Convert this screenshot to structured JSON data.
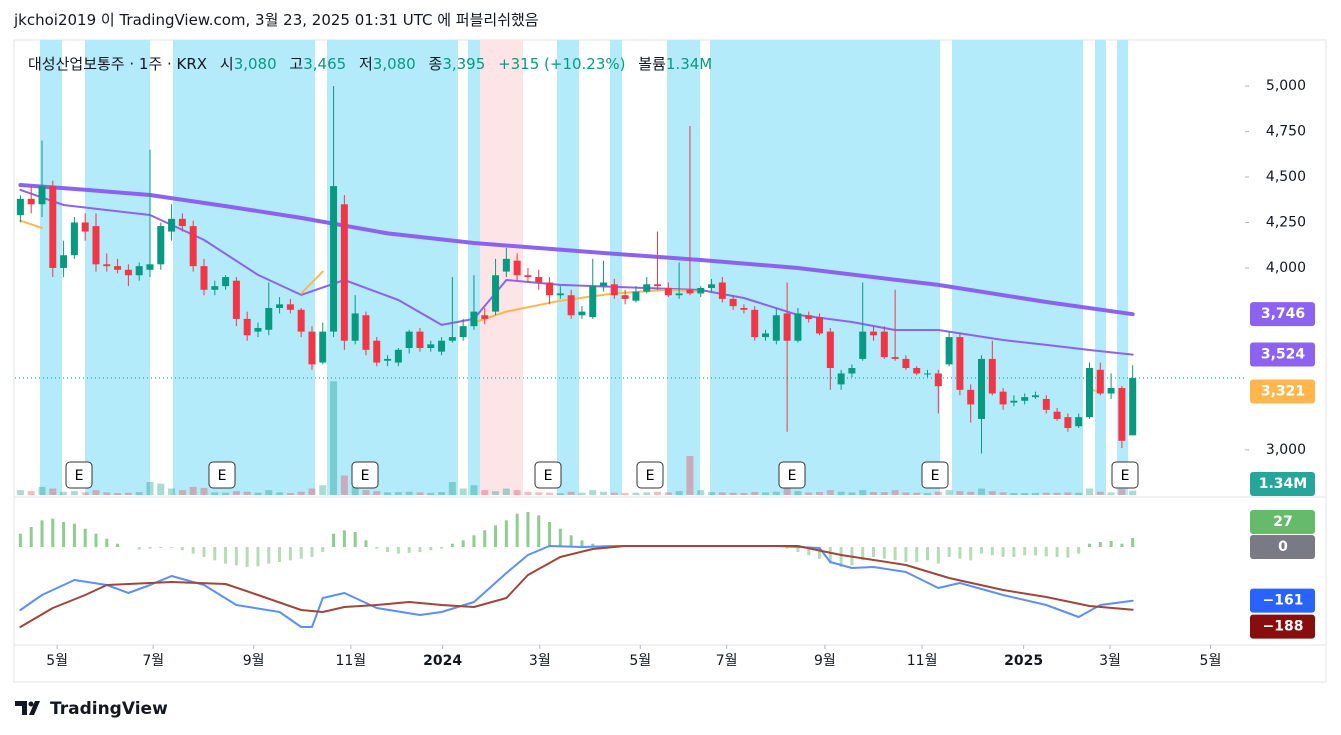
{
  "header": {
    "publisher": "jkchoi2019 이 TradingView.com, 3월 23, 2025 01:31 UTC 에 퍼블리쉬했음"
  },
  "footer": {
    "brand": "TradingView"
  },
  "chart_data": {
    "type": "candlestick",
    "legend": {
      "symbol": "대성산업보통주 · 1주 · KRX",
      "open_label": "시",
      "open": "3,080",
      "high_label": "고",
      "high": "3,465",
      "low_label": "저",
      "low": "3,080",
      "close_label": "종",
      "close": "3,395",
      "change": "+315 (+10.23%)",
      "volume_label": "볼륨",
      "volume": "1.34M"
    },
    "xlim": [
      -0.5,
      113.4
    ],
    "xticks": [
      {
        "value": 3.4,
        "label": "5월"
      },
      {
        "value": 12.3,
        "label": "7월"
      },
      {
        "value": 21.6,
        "label": "9월"
      },
      {
        "value": 30.6,
        "label": "11월"
      },
      {
        "value": 39.1,
        "label": "2024"
      },
      {
        "value": 48.1,
        "label": "3월"
      },
      {
        "value": 57.4,
        "label": "5월"
      },
      {
        "value": 65.4,
        "label": "7월"
      },
      {
        "value": 74.5,
        "label": "9월"
      },
      {
        "value": 83.5,
        "label": "11월"
      },
      {
        "value": 92.9,
        "label": "2025"
      },
      {
        "value": 100.9,
        "label": "3월"
      },
      {
        "value": 110.2,
        "label": "5월"
      }
    ],
    "ylim": [
      2752,
      5253
    ],
    "yticks": [
      {
        "value": 5000,
        "label": "5,000"
      },
      {
        "value": 4750,
        "label": "4,750"
      },
      {
        "value": 4500,
        "label": "4,500"
      },
      {
        "value": 4250,
        "label": "4,250"
      },
      {
        "value": 4000,
        "label": "4,000"
      },
      {
        "value": 3000,
        "label": "3,000"
      }
    ],
    "colors": {
      "up": "#089981",
      "down": "#f23645"
    },
    "candles": [
      [
        4290,
        4400,
        4250,
        4380
      ],
      [
        4380,
        4450,
        4300,
        4350
      ],
      [
        4350,
        4700,
        4280,
        4450
      ],
      [
        4450,
        4480,
        3950,
        4000
      ],
      [
        4000,
        4150,
        3950,
        4070
      ],
      [
        4070,
        4280,
        4050,
        4250
      ],
      [
        4250,
        4300,
        4150,
        4200
      ],
      [
        4230,
        4300,
        3980,
        4020
      ],
      [
        4020,
        4080,
        3980,
        4010
      ],
      [
        4010,
        4050,
        3970,
        3990
      ],
      [
        3990,
        4020,
        3900,
        3960
      ],
      [
        3960,
        4030,
        3930,
        4010
      ],
      [
        3990,
        4650,
        3950,
        4020
      ],
      [
        4020,
        4250,
        3990,
        4230
      ],
      [
        4200,
        4350,
        4150,
        4270
      ],
      [
        4270,
        4300,
        4200,
        4230
      ],
      [
        4230,
        4260,
        3980,
        4010
      ],
      [
        4010,
        4050,
        3850,
        3880
      ],
      [
        3880,
        3930,
        3850,
        3900
      ],
      [
        3900,
        3960,
        3880,
        3950
      ],
      [
        3930,
        3950,
        3680,
        3720
      ],
      [
        3720,
        3760,
        3600,
        3630
      ],
      [
        3650,
        3700,
        3620,
        3670
      ],
      [
        3660,
        3920,
        3630,
        3780
      ],
      [
        3780,
        3840,
        3750,
        3800
      ],
      [
        3800,
        3830,
        3750,
        3770
      ],
      [
        3770,
        3780,
        3620,
        3650
      ],
      [
        3650,
        3680,
        3440,
        3470
      ],
      [
        3480,
        3700,
        3470,
        3650
      ],
      [
        3650,
        5000,
        3620,
        4450
      ],
      [
        4350,
        4400,
        3550,
        3600
      ],
      [
        3600,
        3850,
        3580,
        3750
      ],
      [
        3740,
        3760,
        3520,
        3550
      ],
      [
        3600,
        3620,
        3460,
        3480
      ],
      [
        3490,
        3520,
        3460,
        3500
      ],
      [
        3480,
        3560,
        3460,
        3550
      ],
      [
        3560,
        3660,
        3530,
        3650
      ],
      [
        3650,
        3670,
        3540,
        3560
      ],
      [
        3560,
        3600,
        3540,
        3580
      ],
      [
        3540,
        3620,
        3520,
        3600
      ],
      [
        3600,
        3950,
        3590,
        3620
      ],
      [
        3620,
        3720,
        3600,
        3680
      ],
      [
        3680,
        3960,
        3660,
        3760
      ],
      [
        3740,
        3780,
        3690,
        3720
      ],
      [
        3760,
        4050,
        3740,
        3960
      ],
      [
        3980,
        4110,
        3950,
        4050
      ],
      [
        4040,
        4080,
        3930,
        3960
      ],
      [
        3960,
        4000,
        3920,
        3950
      ],
      [
        3950,
        3990,
        3880,
        3920
      ],
      [
        3920,
        3950,
        3800,
        3850
      ],
      [
        3850,
        3900,
        3830,
        3860
      ],
      [
        3850,
        3880,
        3720,
        3740
      ],
      [
        3740,
        3790,
        3720,
        3760
      ],
      [
        3730,
        4050,
        3720,
        3900
      ],
      [
        3900,
        4040,
        3870,
        3920
      ],
      [
        3910,
        3940,
        3830,
        3850
      ],
      [
        3850,
        3880,
        3800,
        3830
      ],
      [
        3820,
        3900,
        3810,
        3870
      ],
      [
        3870,
        3950,
        3860,
        3910
      ],
      [
        3910,
        4200,
        3880,
        3900
      ],
      [
        3890,
        3920,
        3840,
        3850
      ],
      [
        3850,
        4030,
        3830,
        3860
      ],
      [
        3880,
        4780,
        3850,
        3860
      ],
      [
        3860,
        3900,
        3840,
        3890
      ],
      [
        3890,
        3940,
        3870,
        3910
      ],
      [
        3920,
        3950,
        3810,
        3830
      ],
      [
        3830,
        3850,
        3770,
        3790
      ],
      [
        3780,
        3800,
        3750,
        3770
      ],
      [
        3770,
        3790,
        3600,
        3620
      ],
      [
        3620,
        3660,
        3600,
        3640
      ],
      [
        3600,
        3780,
        3580,
        3740
      ],
      [
        3750,
        3920,
        3100,
        3600
      ],
      [
        3600,
        3780,
        3590,
        3750
      ],
      [
        3740,
        3760,
        3700,
        3720
      ],
      [
        3730,
        3750,
        3630,
        3640
      ],
      [
        3650,
        3670,
        3330,
        3450
      ],
      [
        3360,
        3440,
        3330,
        3420
      ],
      [
        3420,
        3470,
        3400,
        3450
      ],
      [
        3500,
        3920,
        3490,
        3650
      ],
      [
        3650,
        3680,
        3600,
        3630
      ],
      [
        3650,
        3680,
        3500,
        3510
      ],
      [
        3510,
        3880,
        3490,
        3500
      ],
      [
        3500,
        3520,
        3440,
        3450
      ],
      [
        3450,
        3460,
        3410,
        3420
      ],
      [
        3420,
        3440,
        3400,
        3420
      ],
      [
        3420,
        3440,
        3200,
        3350
      ],
      [
        3470,
        3650,
        3460,
        3620
      ],
      [
        3620,
        3640,
        3300,
        3330
      ],
      [
        3330,
        3360,
        3150,
        3250
      ],
      [
        3170,
        3520,
        2980,
        3500
      ],
      [
        3500,
        3600,
        3300,
        3310
      ],
      [
        3320,
        3340,
        3220,
        3250
      ],
      [
        3260,
        3300,
        3240,
        3270
      ],
      [
        3270,
        3310,
        3250,
        3290
      ],
      [
        3290,
        3320,
        3280,
        3300
      ],
      [
        3280,
        3300,
        3200,
        3220
      ],
      [
        3210,
        3230,
        3160,
        3170
      ],
      [
        3180,
        3200,
        3100,
        3120
      ],
      [
        3130,
        3200,
        3120,
        3180
      ],
      [
        3180,
        3480,
        3170,
        3450
      ],
      [
        3440,
        3480,
        3300,
        3310
      ],
      [
        3310,
        3420,
        3280,
        3340
      ],
      [
        3340,
        3350,
        3010,
        3050
      ],
      [
        3080,
        3465,
        3080,
        3395
      ]
    ],
    "series": [
      {
        "color": "#8c63f0",
        "width": 4,
        "x": [
          0,
          6,
          12,
          19,
          26,
          34,
          42,
          54,
          63,
          72,
          85,
          95,
          103
        ],
        "values": [
          4456,
          4430,
          4401,
          4340,
          4275,
          4190,
          4137,
          4082,
          4044,
          4000,
          3907,
          3813,
          3746
        ],
        "value_label": "3,746"
      },
      {
        "color": "#8c63f0",
        "width": 2,
        "x": [
          0,
          4,
          12,
          17,
          22,
          26,
          30,
          35,
          39,
          42,
          45,
          50,
          58,
          63,
          67,
          72,
          77,
          81,
          85,
          91,
          95,
          99,
          103
        ],
        "values": [
          4429,
          4346,
          4291,
          4154,
          3962,
          3852,
          3934,
          3824,
          3687,
          3720,
          3934,
          3907,
          3890,
          3879,
          3835,
          3742,
          3703,
          3659,
          3659,
          3604,
          3577,
          3549,
          3524
        ],
        "value_label": "3,524"
      },
      {
        "color": "#ffb74d",
        "width": 2,
        "x": [
          0,
          2,
          14,
          26,
          28,
          35,
          42,
          45,
          50,
          55,
          60,
          63,
          80,
          99,
          100
        ],
        "values": [
          4260,
          4220,
          null,
          3860,
          3980,
          null,
          3700,
          3760,
          3820,
          3860,
          3880,
          3870,
          null,
          3330,
          3321
        ],
        "value_label": "3,321"
      }
    ],
    "volume": {
      "ylim": [
        0,
        40
      ],
      "color": "#26a69a",
      "value_label": "1.34M",
      "values": [
        1.5,
        1.2,
        2.5,
        2.0,
        1.0,
        1.2,
        0.8,
        1.5,
        0.8,
        0.6,
        0.7,
        0.9,
        4.0,
        3.5,
        2.0,
        1.5,
        2.5,
        2.2,
        0.8,
        0.7,
        1.2,
        1.0,
        0.7,
        1.5,
        0.8,
        0.6,
        1.0,
        2.0,
        3.0,
        35,
        6.0,
        2.5,
        1.5,
        1.2,
        0.8,
        0.9,
        1.0,
        0.8,
        0.7,
        0.9,
        4.0,
        2.0,
        3.0,
        1.5,
        1.2,
        2.0,
        1.5,
        1.0,
        0.8,
        0.7,
        0.6,
        1.0,
        0.7,
        1.5,
        1.0,
        0.7,
        0.6,
        0.7,
        0.8,
        1.0,
        0.8,
        1.2,
        12,
        1.5,
        0.9,
        0.8,
        0.7,
        0.6,
        0.9,
        0.8,
        1.0,
        2.0,
        1.2,
        0.8,
        0.9,
        1.5,
        1.0,
        0.8,
        1.5,
        0.9,
        0.9,
        1.5,
        0.8,
        0.7,
        0.6,
        1.0,
        1.5,
        1.2,
        1.0,
        2.0,
        1.2,
        0.8,
        0.6,
        0.6,
        0.6,
        0.7,
        0.7,
        0.8,
        0.7,
        2.0,
        1.0,
        0.8,
        1.8,
        1.34
      ]
    },
    "macd": {
      "ylim": [
        -294,
        141
      ],
      "zero": 0,
      "zero_color": "#787b86",
      "histogram": {
        "color_up": "#8fcc8f",
        "color_down": "#b5dcb5",
        "badge_color": "#66bb6a",
        "values": [
          40,
          60,
          80,
          85,
          75,
          70,
          55,
          40,
          25,
          10,
          0,
          -8,
          -5,
          -3,
          -2,
          -10,
          -20,
          -30,
          -40,
          -50,
          -55,
          -60,
          -58,
          -50,
          -45,
          -40,
          -35,
          -30,
          -15,
          40,
          50,
          45,
          20,
          -5,
          -15,
          -20,
          -18,
          -15,
          -10,
          -5,
          10,
          20,
          35,
          50,
          65,
          80,
          100,
          105,
          95,
          75,
          55,
          35,
          20,
          10,
          5,
          3,
          2,
          1,
          1,
          0,
          0,
          1,
          2,
          1,
          0,
          0,
          0,
          0,
          0,
          0,
          0,
          -5,
          -15,
          -25,
          -35,
          -50,
          -60,
          -55,
          -40,
          -30,
          -35,
          -40,
          -45,
          -45,
          -40,
          -50,
          -30,
          -35,
          -40,
          -20,
          -25,
          -30,
          -30,
          -25,
          -25,
          -28,
          -30,
          -32,
          -20,
          10,
          15,
          18,
          10,
          27
        ]
      },
      "lines": [
        {
          "color": "#5b8ff9",
          "x": [
            0,
            2,
            5,
            8,
            10,
            12,
            14,
            17,
            20,
            24,
            26,
            27,
            28,
            30,
            33,
            37,
            39,
            42,
            45,
            47,
            49,
            52,
            55,
            60,
            70,
            74,
            75,
            77,
            79,
            82,
            85,
            87,
            91,
            95,
            98,
            100,
            103
          ],
          "values": [
            -189,
            -144,
            -99,
            -114,
            -138,
            -114,
            -87,
            -114,
            -174,
            -195,
            -240,
            -240,
            -153,
            -138,
            -183,
            -204,
            -195,
            -165,
            -78,
            -24,
            3,
            0,
            3,
            3,
            3,
            -3,
            -45,
            -63,
            -60,
            -75,
            -123,
            -108,
            -144,
            -174,
            -210,
            -174,
            -161
          ],
          "value_label": "−161",
          "badge_color": "#2962ff"
        },
        {
          "color": "#a0453a",
          "x": [
            0,
            3,
            6,
            8,
            10,
            14,
            19,
            22,
            26,
            28,
            30,
            33,
            36,
            39,
            42,
            45,
            47,
            50,
            53,
            56,
            72,
            76,
            82,
            86,
            91,
            95,
            99,
            103
          ],
          "values": [
            -240,
            -183,
            -144,
            -114,
            -111,
            -105,
            -111,
            -144,
            -189,
            -195,
            -180,
            -174,
            -165,
            -174,
            -180,
            -153,
            -84,
            -30,
            -6,
            3,
            3,
            -24,
            -54,
            -93,
            -129,
            -150,
            -177,
            -188
          ],
          "value_label": "−188",
          "badge_color": "#880e0e"
        }
      ]
    },
    "earnings": [
      "E",
      "E",
      "E",
      "E",
      "E",
      "E",
      "E",
      "E"
    ]
  }
}
